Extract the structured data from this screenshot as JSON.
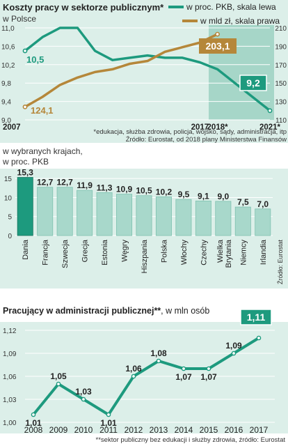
{
  "chart_data": [
    {
      "type": "line",
      "title": "Koszty pracy w sektorze publicznym*",
      "subtitle": "w Polsce",
      "x_ticks": [
        "2007",
        "2017",
        "2018*",
        "2021*"
      ],
      "y_left_ticks": [
        "11,0",
        "10,6",
        "10,2",
        "9,8",
        "9,4",
        "9,0"
      ],
      "y_right_ticks": [
        "210",
        "190",
        "170",
        "150",
        "130",
        "110"
      ],
      "ylim_left": [
        9.0,
        11.0
      ],
      "ylim_right": [
        110,
        210
      ],
      "forecast_label": "2018*–2021*",
      "series": [
        {
          "name": "w proc. PKB, skala lewa",
          "axis": "left",
          "color": "#1d9a7e",
          "x": [
            2007,
            2008,
            2009,
            2010,
            2011,
            2012,
            2013,
            2014,
            2015,
            2016,
            2017,
            2018,
            2019,
            2020,
            2021
          ],
          "y": [
            10.5,
            10.8,
            11.0,
            11.0,
            10.5,
            10.3,
            10.35,
            10.4,
            10.35,
            10.35,
            10.25,
            10.1,
            9.8,
            9.5,
            9.2
          ],
          "labels": [
            {
              "x": 2007,
              "text": "10,5"
            },
            {
              "x": 2021,
              "text": "9,2"
            }
          ]
        },
        {
          "name": "w mld zł, skala prawa",
          "axis": "right",
          "color": "#b5873a",
          "x": [
            2007,
            2008,
            2009,
            2010,
            2011,
            2012,
            2013,
            2014,
            2015,
            2016,
            2017,
            2018
          ],
          "y": [
            124.1,
            135,
            148,
            156,
            162,
            165,
            171,
            174,
            184,
            189,
            194,
            203.1
          ],
          "labels": [
            {
              "x": 2007,
              "text": "124,1"
            },
            {
              "x": 2018,
              "text": "203,1"
            }
          ]
        }
      ],
      "footnote": "*edukacja, służba zdrowia, policja, wojsko, sądy, administracja, itp",
      "source": "Źródło: Eurostat, od 2018 plany Ministerstwa Finansów"
    },
    {
      "type": "bar",
      "title": "w wybranych krajach,",
      "subtitle": "w proc. PKB",
      "categories": [
        "Dania",
        "Francja",
        "Szwecja",
        "Grecja",
        "Estonia",
        "Węgry",
        "Hiszpania",
        "Polska",
        "Włochy",
        "Czechy",
        "Wielka Brytania",
        "Niemcy",
        "Irlandia"
      ],
      "values": [
        15.3,
        12.7,
        12.7,
        11.9,
        11.3,
        10.9,
        10.5,
        10.2,
        9.5,
        9.1,
        9.0,
        7.5,
        7.0
      ],
      "value_labels": [
        "15,3",
        "12,7",
        "12,7",
        "11,9",
        "11,3",
        "10,9",
        "10,5",
        "10,2",
        "9,5",
        "9,1",
        "9,0",
        "7,5",
        "7,0"
      ],
      "y_ticks": [
        "0",
        "5",
        "10",
        "15"
      ],
      "ylim": [
        0,
        16.5
      ],
      "highlight": "Dania",
      "colors": {
        "highlight": "#1d9a7e",
        "bar": "#a8d8cb"
      },
      "source": "Źródło: Eurostat"
    },
    {
      "type": "line",
      "title": "Pracujący w administracji publicznej**",
      "subtitle": ", w mln osób",
      "x": [
        "2008",
        "2009",
        "2010",
        "2011",
        "2012",
        "2013",
        "2014",
        "2015",
        "2016",
        "2017"
      ],
      "y": [
        1.01,
        1.05,
        1.03,
        1.01,
        1.06,
        1.08,
        1.07,
        1.07,
        1.09,
        1.11
      ],
      "value_labels": [
        "1,01",
        "1,05",
        "1,03",
        "1,01",
        "1,06",
        "1,08",
        "1,07",
        "1,07",
        "1,09",
        "1,11"
      ],
      "y_ticks": [
        "1,00",
        "1,03",
        "1,06",
        "1,09",
        "1,12"
      ],
      "ylim": [
        1.0,
        1.12
      ],
      "color": "#1d9a7e",
      "footnote": "**sektor publiczny bez edukacji i służby zdrowia, źródło: Eurostat"
    }
  ]
}
